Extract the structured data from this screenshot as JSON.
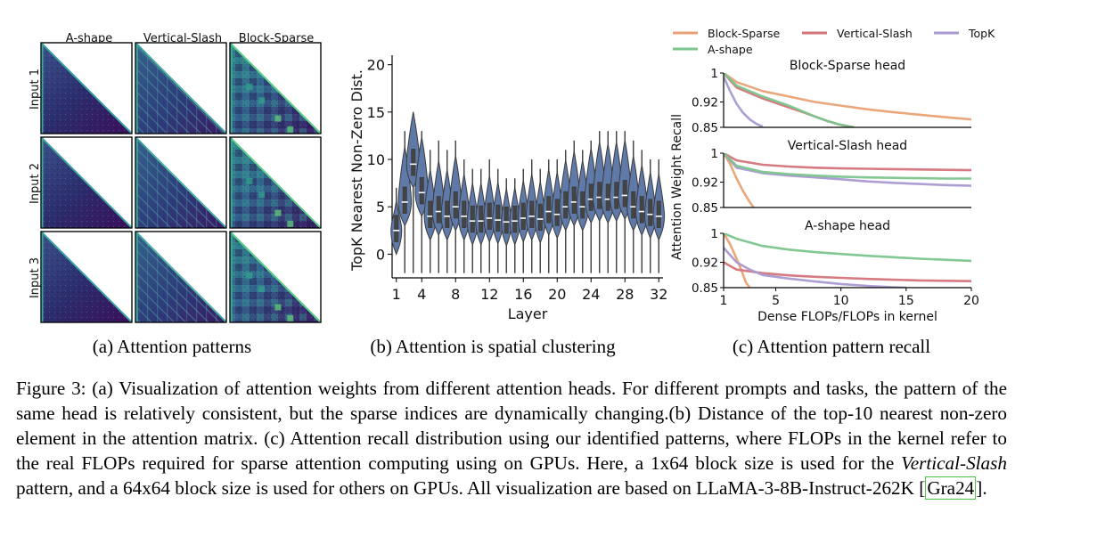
{
  "panel_a": {
    "columns": [
      "A-shape",
      "Vertical-Slash",
      "Block-Sparse"
    ],
    "rows": [
      "Input 1",
      "Input 2",
      "Input 3"
    ],
    "subcaption": "(a) Attention patterns"
  },
  "panel_b": {
    "subcaption": "(b) Attention is spatial clustering"
  },
  "panel_c": {
    "subcaption": "(c) Attention pattern recall",
    "legend": [
      "Block-Sparse",
      "Vertical-Slash",
      "TopK",
      "A-shape"
    ]
  },
  "caption": {
    "p1": "Figure 3: (a) Visualization of attention weights from different attention heads. For different prompts and tasks, the pattern of the same head is relatively consistent, but the sparse indices are dynamically changing.(b) Distance of the top-10 nearest non-zero element in the attention matrix. (c) Attention recall distribution using our identified patterns, where FLOPs in the kernel refer to the real FLOPs required for sparse attention computing using on GPUs. Here, a 1x64 block size is used for the ",
    "em": "Vertical-Slash",
    "p2": " pattern, and a 64x64 block size is used for others on GPUs. All visualization are based on LLaMA-3-8B-Instruct-262K ",
    "cite": "Gra24",
    "p3": "."
  },
  "chart_data": [
    {
      "type": "violin",
      "title": "",
      "xlabel": "Layer",
      "ylabel": "TopK Nearest Non-Zero Dist.",
      "xticks": [
        1,
        4,
        8,
        12,
        16,
        20,
        24,
        28,
        32
      ],
      "yticks": [
        0,
        5,
        10,
        15,
        20
      ],
      "ylim": [
        -2.5,
        21
      ],
      "x": [
        1,
        2,
        3,
        4,
        5,
        6,
        7,
        8,
        9,
        10,
        11,
        12,
        13,
        14,
        15,
        16,
        17,
        18,
        19,
        20,
        21,
        22,
        23,
        24,
        25,
        26,
        27,
        28,
        29,
        30,
        31,
        32
      ],
      "medians": [
        2.5,
        5.5,
        9.5,
        6.5,
        4.0,
        4.5,
        4.0,
        5.0,
        4.0,
        3.5,
        3.5,
        3.8,
        3.6,
        3.4,
        3.5,
        3.8,
        4.0,
        3.7,
        4.5,
        4.2,
        5.0,
        5.5,
        5.0,
        5.8,
        6.0,
        5.8,
        6.0,
        6.2,
        5.0,
        4.5,
        4.2,
        4.0
      ],
      "maxes": [
        7,
        13,
        15,
        13,
        11,
        12,
        11,
        12,
        10,
        9,
        9,
        10,
        9,
        8,
        8,
        9,
        10,
        9,
        10,
        10,
        11,
        12,
        11,
        12,
        13,
        13,
        13,
        13,
        12,
        11,
        10,
        10
      ]
    },
    {
      "type": "line",
      "title": "Block-Sparse head",
      "xlabel": "Dense FLOPs/FLOPs in kernel",
      "ylabel": "Attention Weight Recall",
      "xlim": [
        1,
        20
      ],
      "ylim": [
        0.85,
        1
      ],
      "yticks": [
        1,
        0.92,
        0.85
      ],
      "series": [
        {
          "name": "Block-Sparse",
          "x": [
            1,
            2,
            4,
            6,
            8,
            10,
            12,
            14,
            16,
            18,
            20
          ],
          "values": [
            1.0,
            0.975,
            0.95,
            0.935,
            0.92,
            0.91,
            0.9,
            0.892,
            0.885,
            0.878,
            0.872
          ]
        },
        {
          "name": "Vertical-Slash",
          "x": [
            1,
            2,
            4,
            6,
            7,
            8,
            9,
            10,
            11
          ],
          "values": [
            1.0,
            0.96,
            0.93,
            0.905,
            0.893,
            0.88,
            0.867,
            0.857,
            0.85
          ]
        },
        {
          "name": "TopK",
          "x": [
            1,
            1.5,
            2,
            2.5,
            3,
            3.5,
            4
          ],
          "values": [
            0.99,
            0.95,
            0.915,
            0.89,
            0.872,
            0.86,
            0.852
          ]
        },
        {
          "name": "A-shape",
          "x": [
            1,
            2,
            4,
            6,
            7,
            8,
            9,
            10,
            11
          ],
          "values": [
            1.0,
            0.965,
            0.935,
            0.91,
            0.895,
            0.88,
            0.867,
            0.857,
            0.85
          ]
        }
      ]
    },
    {
      "type": "line",
      "title": "Vertical-Slash head",
      "xlabel": "Dense FLOPs/FLOPs in kernel",
      "ylabel": "Attention Weight Recall",
      "xlim": [
        1,
        20
      ],
      "ylim": [
        0.85,
        1
      ],
      "yticks": [
        1,
        0.92,
        0.85
      ],
      "series": [
        {
          "name": "Block-Sparse",
          "x": [
            1,
            1.5,
            2,
            2.5,
            3,
            3.3
          ],
          "values": [
            1.0,
            0.97,
            0.93,
            0.895,
            0.865,
            0.85
          ]
        },
        {
          "name": "Vertical-Slash",
          "x": [
            1,
            2,
            4,
            6,
            8,
            10,
            12,
            14,
            16,
            18,
            20
          ],
          "values": [
            1.0,
            0.98,
            0.968,
            0.963,
            0.96,
            0.958,
            0.957,
            0.956,
            0.955,
            0.954,
            0.953
          ]
        },
        {
          "name": "TopK",
          "x": [
            1,
            2,
            4,
            6,
            8,
            10,
            12,
            14,
            16,
            18,
            20
          ],
          "values": [
            1.0,
            0.96,
            0.945,
            0.938,
            0.933,
            0.928,
            0.922,
            0.918,
            0.915,
            0.912,
            0.91
          ]
        },
        {
          "name": "A-shape",
          "x": [
            1,
            2,
            4,
            6,
            8,
            10,
            12,
            14,
            16,
            18,
            20
          ],
          "values": [
            1.0,
            0.965,
            0.948,
            0.942,
            0.938,
            0.935,
            0.933,
            0.932,
            0.931,
            0.93,
            0.93
          ]
        }
      ]
    },
    {
      "type": "line",
      "title": "A-shape head",
      "xlabel": "Dense FLOPs/FLOPs in kernel",
      "ylabel": "Attention Weight Recall",
      "xlim": [
        1,
        20
      ],
      "ylim": [
        0.85,
        1
      ],
      "yticks": [
        1,
        0.92,
        0.85
      ],
      "xticks": [
        1,
        5,
        10,
        15,
        20
      ],
      "series": [
        {
          "name": "Block-Sparse",
          "x": [
            1,
            1.5,
            2,
            2.4,
            2.7,
            3
          ],
          "values": [
            1.0,
            0.97,
            0.93,
            0.895,
            0.865,
            0.85
          ]
        },
        {
          "name": "Vertical-Slash",
          "x": [
            1,
            2,
            4,
            6,
            8,
            10,
            12,
            14,
            16,
            18,
            20
          ],
          "values": [
            0.92,
            0.9,
            0.89,
            0.884,
            0.88,
            0.877,
            0.874,
            0.872,
            0.87,
            0.869,
            0.868
          ]
        },
        {
          "name": "TopK",
          "x": [
            1,
            2,
            3,
            4,
            6,
            8,
            10,
            12,
            14,
            15
          ],
          "values": [
            0.96,
            0.92,
            0.9,
            0.885,
            0.875,
            0.867,
            0.86,
            0.855,
            0.851,
            0.85
          ]
        },
        {
          "name": "A-shape",
          "x": [
            1,
            2,
            4,
            6,
            8,
            10,
            12,
            14,
            16,
            18,
            20
          ],
          "values": [
            1.0,
            0.985,
            0.965,
            0.955,
            0.948,
            0.943,
            0.938,
            0.934,
            0.93,
            0.927,
            0.924
          ]
        }
      ]
    }
  ],
  "colors": {
    "Block-Sparse": "#e9a275",
    "Vertical-Slash": "#d3747a",
    "TopK": "#a99ad0",
    "A-shape": "#7cc48d",
    "violin_fill": "#5f79a8",
    "violin_edge": "#3c3c3c"
  }
}
